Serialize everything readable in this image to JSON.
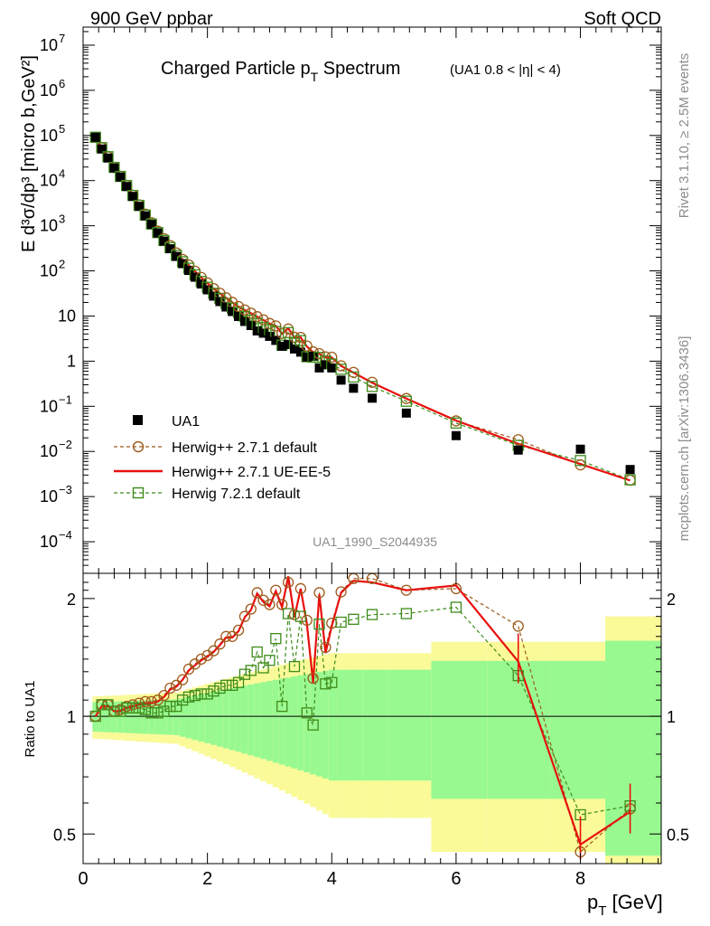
{
  "header": {
    "left": "900 GeV ppbar",
    "right": "Soft QCD"
  },
  "side": {
    "rivet": "Rivet 3.1.10, ≥ 2.5M events",
    "mcplots": "mcplots.cern.ch [arXiv:1306.3436]"
  },
  "chart_data": {
    "type": "scatter",
    "title": "Charged Particle p",
    "title_sub": "T",
    "title_rest": " Spectrum",
    "title_cut": "(UA1 0.8 < |η| < 4)",
    "ref": "UA1_1990_S2044935",
    "ylabel": "E d³σ/dp³ [micro b,GeV²]",
    "ratio_ylabel": "Ratio to UA1",
    "xlabel": "p",
    "xlabel_sub": "T",
    "xlabel_unit": " [GeV]",
    "x_ticks": [
      "0",
      "2",
      "4",
      "6",
      "8"
    ],
    "xlim": [
      0,
      9.3
    ],
    "ylim_log": [
      -4.7,
      7.4
    ],
    "ratio_ylim": [
      0.42,
      2.32
    ],
    "y_ticks": [
      {
        "v": 7,
        "t": "10",
        "e": "7"
      },
      {
        "v": 6,
        "t": "10",
        "e": "6"
      },
      {
        "v": 5,
        "t": "10",
        "e": "5"
      },
      {
        "v": 4,
        "t": "10",
        "e": "4"
      },
      {
        "v": 3,
        "t": "10",
        "e": "3"
      },
      {
        "v": 2,
        "t": "10",
        "e": "2"
      },
      {
        "v": 1,
        "t": "10",
        "e": ""
      },
      {
        "v": 0,
        "t": "1",
        "e": ""
      },
      {
        "v": -1,
        "t": "10",
        "e": "−1"
      },
      {
        "v": -2,
        "t": "10",
        "e": "−2"
      },
      {
        "v": -3,
        "t": "10",
        "e": "−3"
      },
      {
        "v": -4,
        "t": "10",
        "e": "−4"
      }
    ],
    "ratio_ticks": [
      {
        "v": 0.5,
        "t": "0.5"
      },
      {
        "v": 1,
        "t": "1"
      },
      {
        "v": 2,
        "t": "2"
      }
    ],
    "legend_position": "lower-left",
    "colors": {
      "data": "#000000",
      "h271": "#9c5a1a",
      "ueee5": "#e8100e",
      "h721": "#3e8c1a",
      "band_green": "#99f991",
      "band_yellow": "#fafa98"
    },
    "x": [
      0.2,
      0.3,
      0.4,
      0.5,
      0.6,
      0.7,
      0.8,
      0.9,
      1.0,
      1.1,
      1.2,
      1.3,
      1.4,
      1.5,
      1.6,
      1.7,
      1.8,
      1.9,
      2.0,
      2.1,
      2.2,
      2.3,
      2.4,
      2.5,
      2.6,
      2.7,
      2.8,
      2.9,
      3.0,
      3.1,
      3.2,
      3.3,
      3.4,
      3.5,
      3.6,
      3.7,
      3.8,
      3.9,
      4.0,
      4.15,
      4.35,
      4.65,
      5.2,
      6.0,
      7.0,
      8.0,
      8.8
    ],
    "ua1_log": [
      4.96,
      4.7,
      4.5,
      4.28,
      4.08,
      3.87,
      3.65,
      3.43,
      3.22,
      3.03,
      2.84,
      2.66,
      2.49,
      2.32,
      2.16,
      2.01,
      1.86,
      1.71,
      1.58,
      1.44,
      1.32,
      1.2,
      1.1,
      0.99,
      0.88,
      0.79,
      0.67,
      0.62,
      0.55,
      0.46,
      0.33,
      0.37,
      0.27,
      0.2,
      0.09,
      0.11,
      -0.15,
      -0.08,
      -0.15,
      -0.42,
      -0.6,
      -0.82,
      -1.15,
      -1.65,
      -1.97,
      -1.95,
      -2.4
    ],
    "series": [
      {
        "name": "UA1",
        "style": "marker"
      },
      {
        "name": "Herwig++ 2.7.1 default",
        "style": "circle-dashed",
        "ratio": [
          1.0,
          1.07,
          1.07,
          1.03,
          1.04,
          1.06,
          1.07,
          1.08,
          1.09,
          1.09,
          1.1,
          1.13,
          1.18,
          1.2,
          1.24,
          1.32,
          1.36,
          1.4,
          1.43,
          1.47,
          1.53,
          1.6,
          1.6,
          1.66,
          1.8,
          1.88,
          2.07,
          1.98,
          1.93,
          2.1,
          1.93,
          2.2,
          1.82,
          2.12,
          1.76,
          1.25,
          2.07,
          1.5,
          1.73,
          2.08,
          2.25,
          2.25,
          2.1,
          2.12,
          1.7,
          0.45,
          0.58
        ]
      },
      {
        "name": "Herwig++ 2.7.1 UE-EE-5",
        "style": "line",
        "ratio": [
          1.0,
          1.06,
          1.06,
          1.03,
          1.03,
          1.05,
          1.06,
          1.07,
          1.08,
          1.08,
          1.09,
          1.12,
          1.17,
          1.19,
          1.24,
          1.31,
          1.35,
          1.39,
          1.42,
          1.46,
          1.52,
          1.59,
          1.59,
          1.65,
          1.79,
          1.87,
          2.06,
          1.96,
          1.91,
          2.09,
          1.9,
          2.28,
          1.79,
          2.12,
          1.72,
          1.22,
          2.05,
          1.45,
          1.7,
          2.07,
          2.22,
          2.2,
          2.1,
          2.16,
          1.38,
          0.47,
          0.57
        ]
      },
      {
        "name": "Herwig 7.2.1 default",
        "style": "square-dashed",
        "ratio": [
          1.0,
          1.07,
          1.07,
          1.03,
          1.03,
          1.05,
          1.05,
          1.05,
          1.04,
          1.02,
          1.02,
          1.03,
          1.06,
          1.06,
          1.1,
          1.12,
          1.13,
          1.14,
          1.14,
          1.16,
          1.18,
          1.2,
          1.2,
          1.22,
          1.28,
          1.31,
          1.46,
          1.33,
          1.39,
          1.58,
          1.06,
          1.83,
          1.34,
          1.8,
          1.02,
          0.95,
          1.72,
          1.21,
          1.22,
          1.74,
          1.77,
          1.82,
          1.83,
          1.9,
          1.27,
          0.56,
          0.59
        ]
      }
    ]
  }
}
